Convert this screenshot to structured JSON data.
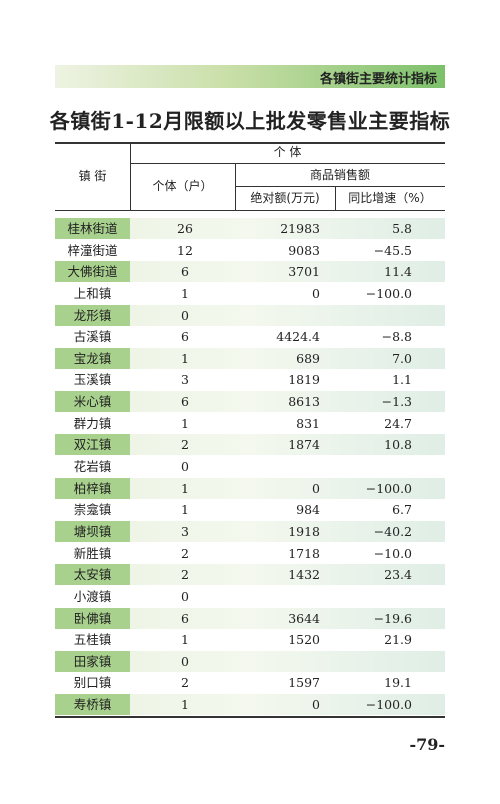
{
  "header": {
    "section": "各镇街主要统计指标"
  },
  "title": "各镇街1-12月限额以上批发零售业主要指标",
  "table": {
    "columns": {
      "town": "镇 街",
      "individual": "个 体",
      "households": "个体（户）",
      "sales": "商品销售额",
      "absolute": "绝对额(万元)",
      "growth": "同比增速（%）"
    },
    "rows": [
      [
        "桂林街道",
        "26",
        "21983",
        "5.8"
      ],
      [
        "梓潼街道",
        "12",
        "9083",
        "−45.5"
      ],
      [
        "大佛街道",
        "6",
        "3701",
        "11.4"
      ],
      [
        "上和镇",
        "1",
        "0",
        "−100.0"
      ],
      [
        "龙形镇",
        "0",
        null,
        null
      ],
      [
        "古溪镇",
        "6",
        "4424.4",
        "−8.8"
      ],
      [
        "宝龙镇",
        "1",
        "689",
        "7.0"
      ],
      [
        "玉溪镇",
        "3",
        "1819",
        "1.1"
      ],
      [
        "米心镇",
        "6",
        "8613",
        "−1.3"
      ],
      [
        "群力镇",
        "1",
        "831",
        "24.7"
      ],
      [
        "双江镇",
        "2",
        "1874",
        "10.8"
      ],
      [
        "花岩镇",
        "0",
        null,
        null
      ],
      [
        "柏梓镇",
        "1",
        "0",
        "−100.0"
      ],
      [
        "崇龛镇",
        "1",
        "984",
        "6.7"
      ],
      [
        "塘坝镇",
        "3",
        "1918",
        "−40.2"
      ],
      [
        "新胜镇",
        "2",
        "1718",
        "−10.0"
      ],
      [
        "太安镇",
        "2",
        "1432",
        "23.4"
      ],
      [
        "小渡镇",
        "0",
        null,
        null
      ],
      [
        "卧佛镇",
        "6",
        "3644",
        "−19.6"
      ],
      [
        "五桂镇",
        "1",
        "1520",
        "21.9"
      ],
      [
        "田家镇",
        "0",
        null,
        null
      ],
      [
        "别口镇",
        "2",
        "1597",
        "19.1"
      ],
      [
        "寿桥镇",
        "1",
        "0",
        "−100.0"
      ]
    ]
  },
  "page_number": "-79-"
}
